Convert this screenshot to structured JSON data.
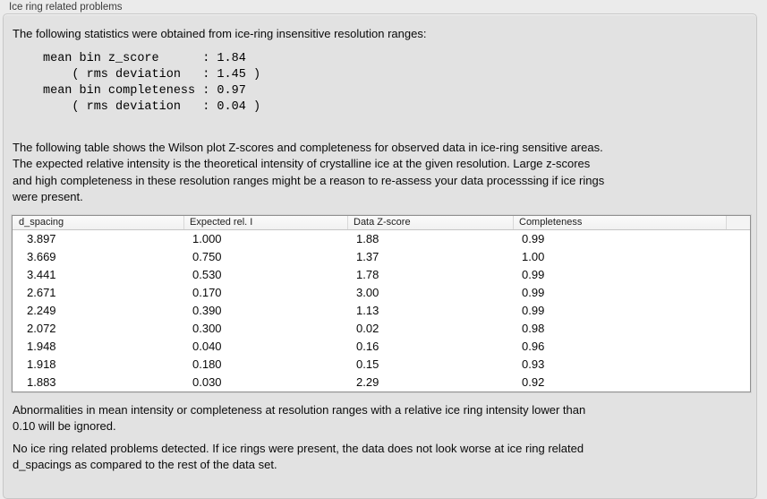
{
  "panel": {
    "title": "Ice ring related problems"
  },
  "intro": "The following statistics were obtained from ice-ring insensitive resolution ranges:",
  "stats_lines": [
    "mean bin z_score      : 1.84",
    "    ( rms deviation   : 1.45 )",
    "mean bin completeness : 0.97",
    "    ( rms deviation   : 0.04 )"
  ],
  "description_lines": [
    "The following table shows the Wilson plot Z-scores and completeness for observed data in ice-ring sensitive areas.",
    "The expected relative intensity is the theoretical intensity of crystalline ice at the given resolution. Large z-scores",
    "and high completeness in these resolution ranges might be a reason to re-assess your data processsing if ice rings",
    "were present."
  ],
  "table": {
    "columns": [
      "d_spacing",
      "Expected rel. I",
      "Data Z-score",
      "Completeness"
    ],
    "rows": [
      [
        "3.897",
        "1.000",
        "1.88",
        "0.99"
      ],
      [
        "3.669",
        "0.750",
        "1.37",
        "1.00"
      ],
      [
        "3.441",
        "0.530",
        "1.78",
        "0.99"
      ],
      [
        "2.671",
        "0.170",
        "3.00",
        "0.99"
      ],
      [
        "2.249",
        "0.390",
        "1.13",
        "0.99"
      ],
      [
        "2.072",
        "0.300",
        "0.02",
        "0.98"
      ],
      [
        "1.948",
        "0.040",
        "0.16",
        "0.96"
      ],
      [
        "1.918",
        "0.180",
        "0.15",
        "0.93"
      ],
      [
        "1.883",
        "0.030",
        "2.29",
        "0.92"
      ]
    ]
  },
  "note_lines": [
    "Abnormalities in mean intensity or completeness at resolution ranges with a relative ice ring intensity lower than",
    "0.10 will be ignored."
  ],
  "conclusion_lines": [
    "No ice ring related problems detected. If ice rings were present, the data does not look worse at ice ring related",
    "d_spacings as compared to the rest of the data set."
  ]
}
